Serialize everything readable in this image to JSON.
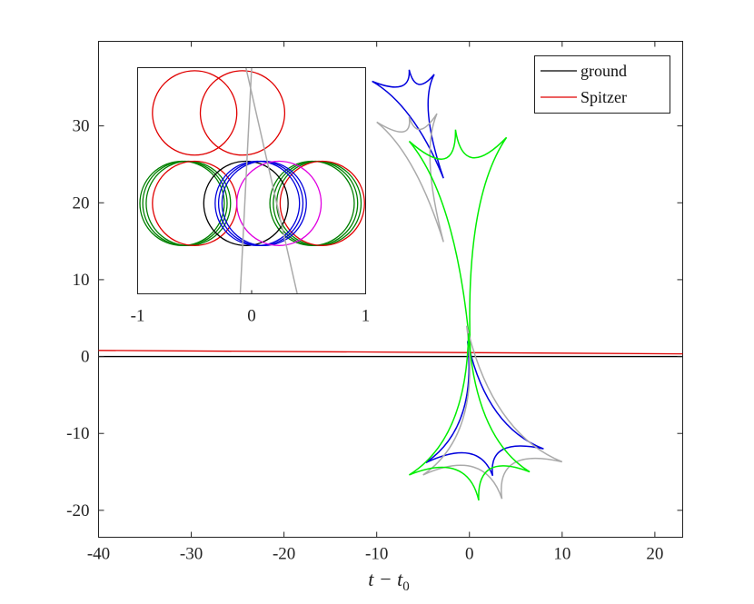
{
  "chart_data": [
    {
      "type": "line",
      "title": "",
      "xlabel": "t − t",
      "xlabel_sub": "0",
      "ylabel": "",
      "xlim": [
        -40,
        23
      ],
      "ylim": [
        -23.5,
        41
      ],
      "xticks": [
        -40,
        -30,
        -20,
        -10,
        0,
        10,
        20
      ],
      "yticks": [
        -20,
        -10,
        0,
        10,
        20,
        30
      ],
      "xtick_labels": [
        "-40",
        "-30",
        "-20",
        "-10",
        "0",
        "10",
        "20"
      ],
      "ytick_labels": [
        "-20",
        "-10",
        "0",
        "10",
        "20",
        "30"
      ],
      "grid": false,
      "legend_position": "top-right",
      "series": [
        {
          "name": "ground",
          "color": "#000000",
          "x": [
            -40,
            23
          ],
          "y": [
            0,
            0
          ]
        },
        {
          "name": "Spitzer",
          "color": "#e00000",
          "x": [
            -40,
            23
          ],
          "y": [
            0.8,
            0.35
          ]
        }
      ],
      "caustics": [
        {
          "color": "#0000dd",
          "cusps": [
            [
              -10.5,
              35.8
            ],
            [
              -6.5,
              37.3
            ],
            [
              -3.8,
              36.7
            ],
            [
              -2.8,
              23.2
            ]
          ]
        },
        {
          "color": "#aaaaaa",
          "cusps": [
            [
              -10,
              30.5
            ],
            [
              -6.5,
              31.2
            ],
            [
              -3.5,
              31.6
            ],
            [
              -2.8,
              14.9
            ]
          ]
        },
        {
          "color": "#00ee00",
          "cusps": [
            [
              -6.5,
              28
            ],
            [
              -1.5,
              29.5
            ],
            [
              4,
              28.5
            ],
            [
              0.1,
              0.5
            ]
          ]
        },
        {
          "color": "#0000dd",
          "cusps": [
            [
              -0.2,
              2
            ],
            [
              8,
              -12
            ],
            [
              2.5,
              -15.5
            ],
            [
              -4.7,
              -13.8
            ]
          ]
        },
        {
          "color": "#aaaaaa",
          "cusps": [
            [
              -0.3,
              4
            ],
            [
              10,
              -13.7
            ],
            [
              3.5,
              -18.5
            ],
            [
              -5,
              -15.4
            ]
          ]
        },
        {
          "color": "#00ee00",
          "cusps": [
            [
              -0.1,
              3
            ],
            [
              6.5,
              -15
            ],
            [
              1,
              -18.7
            ],
            [
              -6.5,
              -15.4
            ]
          ]
        }
      ]
    },
    {
      "type": "line",
      "title": "",
      "xlabel": "",
      "ylabel": "",
      "xlim": [
        -1,
        1
      ],
      "ylim": [
        -1,
        1
      ],
      "xticks": [
        -1,
        0,
        1
      ],
      "xtick_labels": [
        "-1",
        "0",
        "1"
      ],
      "grid": false,
      "circle_radius": 0.37,
      "circles": [
        {
          "color": "#e00000",
          "cx": -0.5,
          "cy": 0.6
        },
        {
          "color": "#e00000",
          "cx": -0.08,
          "cy": 0.6
        },
        {
          "color": "#008000",
          "cx": -0.61,
          "cy": -0.2
        },
        {
          "color": "#008000",
          "cx": -0.585,
          "cy": -0.2
        },
        {
          "color": "#008000",
          "cx": -0.555,
          "cy": -0.2
        },
        {
          "color": "#e00000",
          "cx": -0.5,
          "cy": -0.2
        },
        {
          "color": "#008000",
          "cx": 0.53,
          "cy": -0.2
        },
        {
          "color": "#008000",
          "cx": 0.56,
          "cy": -0.2
        },
        {
          "color": "#008000",
          "cx": 0.59,
          "cy": -0.2
        },
        {
          "color": "#e00000",
          "cx": 0.62,
          "cy": -0.2
        },
        {
          "color": "#000000",
          "cx": -0.05,
          "cy": -0.2
        },
        {
          "color": "#0000dd",
          "cx": 0.05,
          "cy": -0.2
        },
        {
          "color": "#0000dd",
          "cx": 0.08,
          "cy": -0.2
        },
        {
          "color": "#0000dd",
          "cx": 0.11,
          "cy": -0.2
        },
        {
          "color": "#e000e0",
          "cx": 0.24,
          "cy": -0.2
        }
      ],
      "lines": [
        {
          "color": "#aaaaaa",
          "x": [
            0.0,
            -0.1
          ],
          "y": [
            1.0,
            -1.0
          ]
        },
        {
          "color": "#aaaaaa",
          "x": [
            -0.05,
            0.4
          ],
          "y": [
            1.0,
            -1.0
          ]
        }
      ]
    }
  ],
  "legend": {
    "items": [
      {
        "label": "ground",
        "color": "#000000"
      },
      {
        "label": "Spitzer",
        "color": "#e00000"
      }
    ]
  }
}
